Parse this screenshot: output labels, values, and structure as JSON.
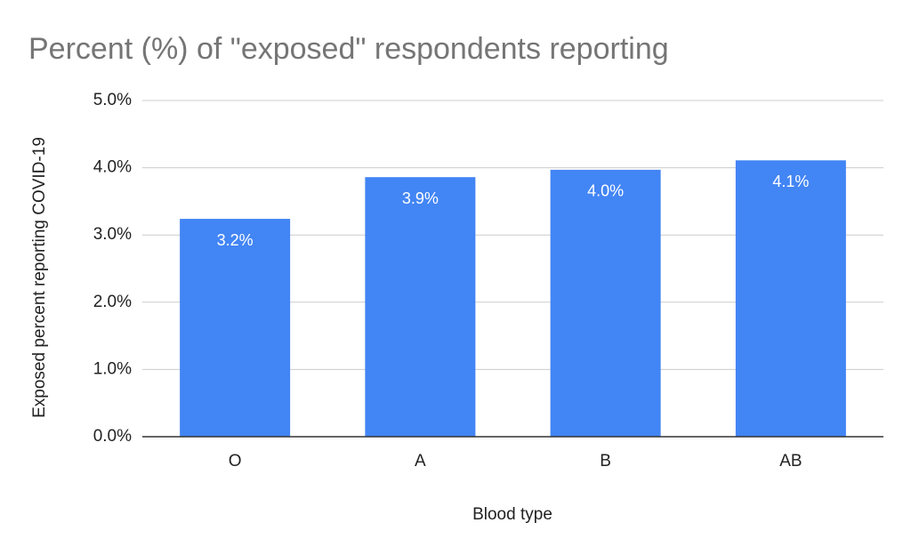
{
  "chart_data": {
    "type": "bar",
    "title": "Percent (%) of \"exposed\" respondents reporting",
    "x_label": "Blood type",
    "y_label": "Exposed percent reporting COVID-19",
    "categories": [
      "O",
      "A",
      "B",
      "AB"
    ],
    "values": [
      3.24,
      3.86,
      3.97,
      4.11
    ],
    "value_labels": [
      "3.2%",
      "3.9%",
      "4.0%",
      "4.1%"
    ],
    "color": "#4285f4",
    "ylim": [
      0,
      5
    ],
    "yticks": [
      {
        "value": 0,
        "label": "0.0%"
      },
      {
        "value": 1,
        "label": "1.0%"
      },
      {
        "value": 2,
        "label": "2.0%"
      },
      {
        "value": 3,
        "label": "3.0%"
      },
      {
        "value": 4,
        "label": "4.0%"
      },
      {
        "value": 5,
        "label": "5.0%"
      }
    ],
    "grid": true
  }
}
